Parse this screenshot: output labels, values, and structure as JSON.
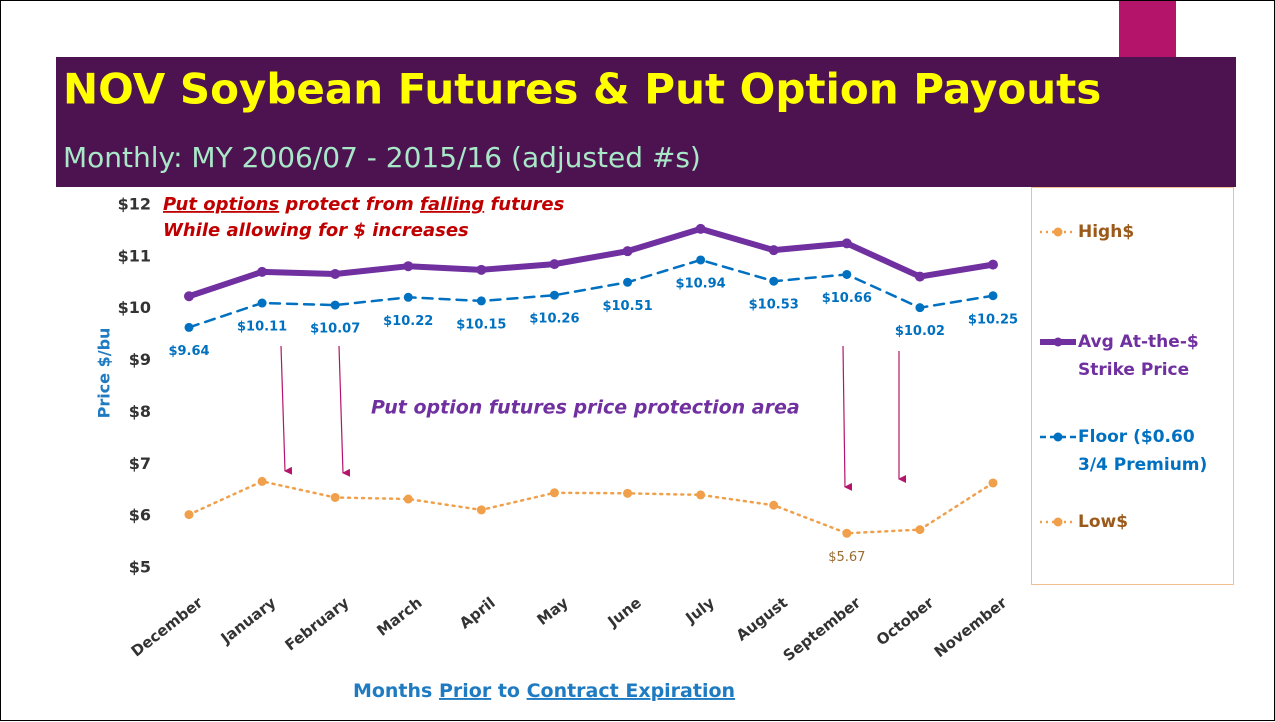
{
  "chart_data": {
    "type": "line",
    "title": "NOV Soybean Futures & Put Option Payouts",
    "subtitle": "Monthly: MY 2006/07 - 2015/16 (adjusted #s)",
    "annotation_line1": [
      "Put options",
      " protect from ",
      "falling",
      " futures"
    ],
    "annotation_line2": "While allowing for $ increases",
    "annotation_area": "Put option futures price protection area",
    "y_label": "Price $/bu",
    "x_label": [
      "Months ",
      "Prior",
      " to ",
      "Contract Expiration"
    ],
    "categories": [
      "December",
      "January",
      "February",
      "March",
      "April",
      "May",
      "June",
      "July",
      "August",
      "September",
      "October",
      "November"
    ],
    "ylim": [
      5,
      12
    ],
    "yticks": [
      {
        "value": 5,
        "label": "$5"
      },
      {
        "value": 6,
        "label": "$6"
      },
      {
        "value": 7,
        "label": "$7"
      },
      {
        "value": 8,
        "label": "$8"
      },
      {
        "value": 9,
        "label": "$9"
      },
      {
        "value": 10,
        "label": "$10"
      },
      {
        "value": 11,
        "label": "$11"
      },
      {
        "value": 12,
        "label": "$12"
      }
    ],
    "grid": false,
    "series": [
      {
        "name": "High$",
        "color": "#f0a04b",
        "line_style": "dotted",
        "line_width": 2.5,
        "values": [
          null,
          null,
          null,
          null,
          null,
          null,
          null,
          null,
          null,
          null,
          null,
          null
        ]
      },
      {
        "name": "Avg At-the-$ Strike Price",
        "color": "#7030a0",
        "line_style": "solid",
        "line_width": 6,
        "values": [
          10.24,
          10.71,
          10.67,
          10.82,
          10.75,
          10.86,
          11.11,
          11.54,
          11.13,
          11.26,
          10.62,
          10.85
        ]
      },
      {
        "name": "Floor ($0.60 3/4 Premium)",
        "color": "#0070c0",
        "line_style": "dashed",
        "line_width": 2.5,
        "values": [
          9.64,
          10.11,
          10.07,
          10.22,
          10.15,
          10.26,
          10.51,
          10.94,
          10.53,
          10.66,
          10.02,
          10.25
        ],
        "value_labels": [
          "$9.64",
          "$10.11",
          "$10.07",
          "$10.22",
          "$10.15",
          "$10.26",
          "$10.51",
          "$10.94",
          "$10.53",
          "$10.66",
          "$10.02",
          "$10.25"
        ]
      },
      {
        "name": "Low$",
        "color": "#f0a04b",
        "line_style": "dotted",
        "line_width": 2.5,
        "values": [
          6.03,
          6.67,
          6.36,
          6.33,
          6.12,
          6.45,
          6.44,
          6.41,
          6.21,
          5.67,
          5.74,
          6.64
        ],
        "value_labels": [
          null,
          null,
          null,
          null,
          null,
          null,
          null,
          null,
          null,
          "$5.67",
          null,
          null
        ]
      }
    ]
  }
}
